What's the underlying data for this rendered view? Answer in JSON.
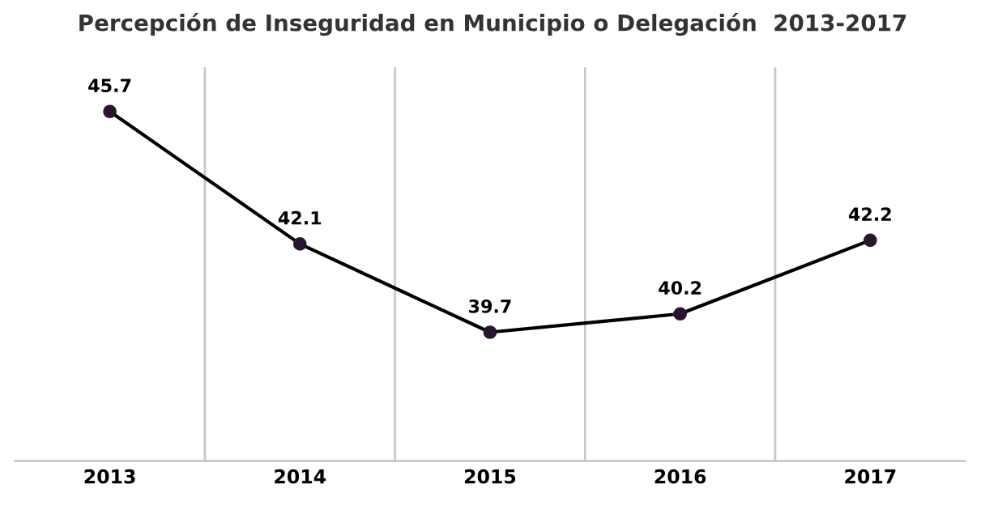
{
  "chart_data": {
    "type": "line",
    "title": "Percepción de Inseguridad en Municipio o Delegación  2013-2017",
    "categories": [
      "2013",
      "2014",
      "2015",
      "2016",
      "2017"
    ],
    "series": [
      {
        "color": "#2a1530",
        "values": [
          45.7,
          42.1,
          39.7,
          40.2,
          42.2
        ]
      }
    ],
    "ylim": [
      36.2,
      46.9
    ],
    "data_labels": true,
    "grid": "x",
    "marker": "circle",
    "line_style": "solid",
    "tick_labels": "x"
  }
}
